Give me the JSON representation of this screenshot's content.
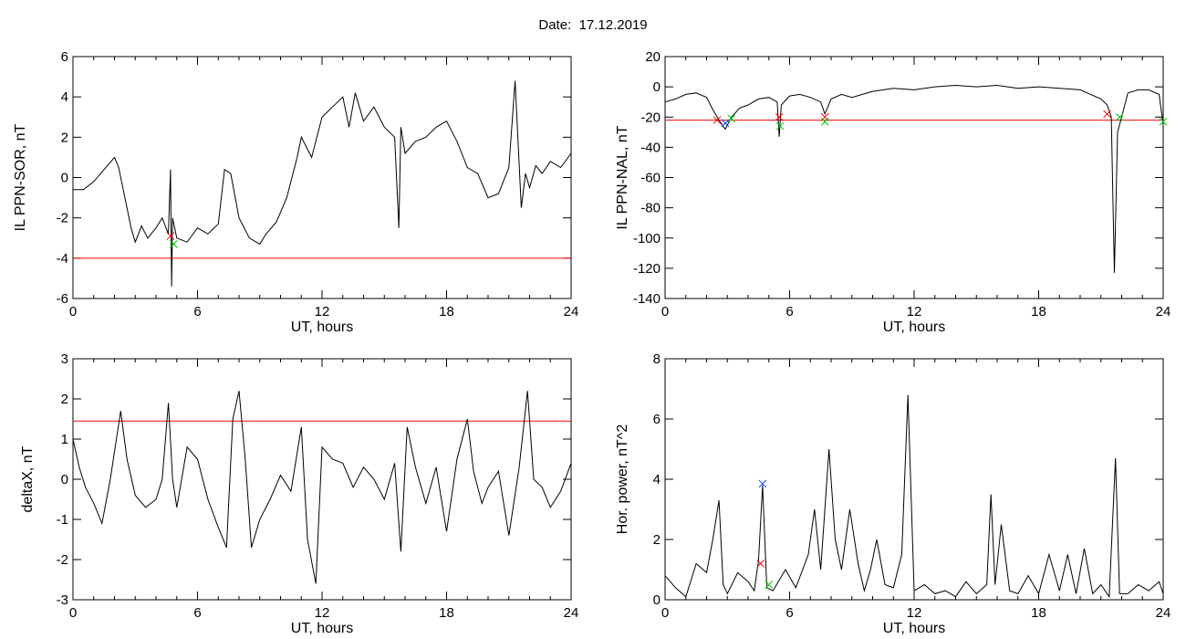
{
  "header": {
    "date_label": "Date:",
    "date_value": "17.12.2019"
  },
  "colors": {
    "trace": "#000000",
    "threshold": "#ff0000",
    "marker_red": "#ff0000",
    "marker_green": "#00cc00",
    "marker_blue": "#0044ff",
    "dip": "#1f5fbf"
  },
  "chart_data": [
    {
      "type": "line",
      "title": "",
      "xlabel": "UT, hours",
      "ylabel": "IL PPN-SOR, nT",
      "xlim": [
        0,
        24
      ],
      "ylim": [
        -6,
        6
      ],
      "xticks": [
        0,
        6,
        12,
        18,
        24
      ],
      "yticks": [
        -6,
        -4,
        -2,
        0,
        2,
        4,
        6
      ],
      "threshold": -4.0,
      "series": [
        {
          "x": [
            0,
            0.5,
            1,
            1.5,
            2,
            2.2,
            2.5,
            2.8,
            3,
            3.3,
            3.6,
            4,
            4.3,
            4.6,
            4.7,
            4.75,
            4.8,
            5,
            5.5,
            6,
            6.5,
            7,
            7.3,
            7.6,
            8,
            8.5,
            9,
            9.3,
            9.8,
            10.3,
            10.8,
            11,
            11.5,
            12,
            12.5,
            13,
            13.3,
            13.6,
            14,
            14.5,
            15,
            15.5,
            15.7,
            15.8,
            16,
            16.5,
            17,
            17.5,
            18,
            18.5,
            19,
            19.5,
            20,
            20.5,
            21,
            21.3,
            21.6,
            21.8,
            22,
            22.3,
            22.6,
            23,
            23.5,
            24
          ],
          "y": [
            -0.6,
            -0.6,
            -0.2,
            0.4,
            1.0,
            0.5,
            -1.0,
            -2.5,
            -3.2,
            -2.4,
            -3.0,
            -2.5,
            -2.0,
            -2.8,
            0.4,
            -5.4,
            -2.0,
            -3.0,
            -3.2,
            -2.5,
            -2.8,
            -2.3,
            0.4,
            0.2,
            -2.0,
            -3.0,
            -3.3,
            -2.8,
            -2.2,
            -1.0,
            1.0,
            2.0,
            1.0,
            3.0,
            3.5,
            4.0,
            2.5,
            4.2,
            2.8,
            3.5,
            2.5,
            2.0,
            -2.5,
            2.5,
            1.2,
            1.8,
            2.0,
            2.5,
            2.8,
            1.8,
            0.5,
            0.2,
            -1.0,
            -0.8,
            0.5,
            4.8,
            -1.5,
            0.2,
            -0.5,
            0.6,
            0.2,
            0.8,
            0.5,
            1.2
          ]
        }
      ],
      "markers": [
        {
          "x": 4.7,
          "y": -2.9,
          "color": "red"
        },
        {
          "x": 4.85,
          "y": -3.3,
          "color": "green"
        }
      ]
    },
    {
      "type": "line",
      "title": "",
      "xlabel": "UT, hours",
      "ylabel": "IL PPN-NAL, nT",
      "xlim": [
        0,
        24
      ],
      "ylim": [
        -140,
        20
      ],
      "xticks": [
        0,
        6,
        12,
        18,
        24
      ],
      "yticks": [
        -140,
        -120,
        -100,
        -80,
        -60,
        -40,
        -20,
        0,
        20
      ],
      "threshold": -22,
      "series": [
        {
          "x": [
            0,
            0.5,
            1,
            1.5,
            2,
            2.3,
            2.6,
            2.9,
            3.2,
            3.6,
            4,
            4.5,
            5,
            5.4,
            5.5,
            5.6,
            6,
            6.5,
            7,
            7.5,
            7.7,
            8,
            8.5,
            9,
            10,
            11,
            12,
            13,
            14,
            15,
            16,
            17,
            18,
            19,
            20,
            20.5,
            21,
            21.3,
            21.5,
            21.65,
            21.8,
            22,
            22.3,
            22.8,
            23.3,
            23.8,
            24
          ],
          "y": [
            -10,
            -8,
            -5,
            -4,
            -7,
            -15,
            -22,
            -28,
            -20,
            -14,
            -12,
            -8,
            -7,
            -10,
            -33,
            -12,
            -6,
            -5,
            -7,
            -10,
            -18,
            -8,
            -5,
            -7,
            -3,
            -1,
            -2,
            0,
            1,
            0,
            1,
            -1,
            0,
            -1,
            -2,
            -5,
            -8,
            -12,
            -20,
            -123,
            -30,
            -20,
            -4,
            -2,
            -2,
            -5,
            -25
          ]
        }
      ],
      "markers": [
        {
          "x": 2.5,
          "y": -22,
          "color": "red"
        },
        {
          "x": 2.9,
          "y": -24,
          "color": "blue"
        },
        {
          "x": 3.2,
          "y": -21,
          "color": "green"
        },
        {
          "x": 5.5,
          "y": -20,
          "color": "red"
        },
        {
          "x": 5.55,
          "y": -26,
          "color": "green"
        },
        {
          "x": 7.7,
          "y": -20,
          "color": "red"
        },
        {
          "x": 7.7,
          "y": -23,
          "color": "green"
        },
        {
          "x": 21.3,
          "y": -18,
          "color": "red"
        },
        {
          "x": 21.9,
          "y": -20,
          "color": "green"
        },
        {
          "x": 24,
          "y": -23,
          "color": "green"
        }
      ]
    },
    {
      "type": "line",
      "title": "",
      "xlabel": "UT, hours",
      "ylabel": "deltaX, nT",
      "xlim": [
        0,
        24
      ],
      "ylim": [
        -3,
        3
      ],
      "xticks": [
        0,
        6,
        12,
        18,
        24
      ],
      "yticks": [
        -3,
        -2,
        -1,
        0,
        1,
        2,
        3
      ],
      "threshold": 1.45,
      "series": [
        {
          "x": [
            0,
            0.3,
            0.6,
            1,
            1.4,
            1.8,
            2.3,
            2.6,
            3,
            3.5,
            4,
            4.3,
            4.6,
            4.8,
            5,
            5.5,
            6,
            6.5,
            7,
            7.4,
            7.7,
            8.0,
            8.3,
            8.6,
            9,
            9.5,
            10,
            10.5,
            11,
            11.3,
            11.7,
            12,
            12.5,
            13,
            13.5,
            14,
            14.5,
            15,
            15.5,
            15.8,
            16.1,
            16.5,
            17,
            17.5,
            18,
            18.5,
            19,
            19.3,
            19.7,
            20,
            20.5,
            21,
            21.5,
            21.9,
            22.2,
            22.6,
            23,
            23.5,
            24
          ],
          "y": [
            1.0,
            0.3,
            -0.2,
            -0.6,
            -1.1,
            0.0,
            1.7,
            0.5,
            -0.4,
            -0.7,
            -0.5,
            0.0,
            1.9,
            0.0,
            -0.7,
            0.8,
            0.5,
            -0.5,
            -1.2,
            -1.7,
            1.5,
            2.2,
            0.5,
            -1.7,
            -1.0,
            -0.5,
            0.1,
            -0.3,
            1.3,
            -1.5,
            -2.6,
            0.8,
            0.5,
            0.4,
            -0.2,
            0.3,
            0.0,
            -0.5,
            0.4,
            -1.8,
            1.3,
            0.3,
            -0.6,
            0.3,
            -1.3,
            0.5,
            1.5,
            0.2,
            -0.6,
            -0.2,
            0.2,
            -1.4,
            0.3,
            2.2,
            0.0,
            -0.2,
            -0.7,
            -0.3,
            0.4
          ]
        }
      ],
      "markers": []
    },
    {
      "type": "line",
      "title": "",
      "xlabel": "UT, hours",
      "ylabel": "Hor. power, nT^2",
      "xlim": [
        0,
        24
      ],
      "ylim": [
        0,
        8
      ],
      "xticks": [
        0,
        6,
        12,
        18,
        24
      ],
      "yticks": [
        0,
        2,
        4,
        6,
        8
      ],
      "series": [
        {
          "x": [
            0,
            0.5,
            1,
            1.5,
            2,
            2.3,
            2.6,
            2.8,
            3,
            3.5,
            4,
            4.3,
            4.5,
            4.7,
            4.9,
            5.2,
            5.8,
            6.3,
            6.9,
            7.2,
            7.5,
            7.9,
            8.2,
            8.5,
            8.9,
            9.3,
            9.6,
            9.9,
            10.2,
            10.6,
            11,
            11.4,
            11.7,
            12,
            12.5,
            13,
            13.5,
            14,
            14.5,
            15,
            15.5,
            15.7,
            15.9,
            16.2,
            16.6,
            17,
            17.5,
            18,
            18.5,
            19,
            19.4,
            19.8,
            20.2,
            20.6,
            21,
            21.4,
            21.7,
            21.9,
            22.3,
            22.8,
            23.3,
            23.8,
            24
          ],
          "y": [
            0.8,
            0.4,
            0.1,
            1.2,
            0.9,
            2.0,
            3.3,
            0.5,
            0.2,
            0.9,
            0.6,
            0.3,
            1.3,
            3.8,
            0.4,
            0.3,
            1.0,
            0.4,
            1.5,
            3.0,
            1.0,
            5.0,
            2.0,
            1.0,
            3.0,
            1.2,
            0.3,
            1.0,
            2.0,
            0.5,
            0.4,
            1.5,
            6.8,
            0.3,
            0.5,
            0.2,
            0.3,
            0.1,
            0.6,
            0.2,
            0.5,
            3.5,
            0.5,
            2.5,
            0.3,
            0.2,
            0.8,
            0.2,
            1.5,
            0.3,
            1.5,
            0.2,
            1.7,
            0.2,
            0.5,
            0.1,
            4.7,
            0.2,
            0.2,
            0.5,
            0.3,
            0.6,
            0.2
          ]
        }
      ],
      "markers": [
        {
          "x": 4.7,
          "y": 3.85,
          "color": "blue"
        },
        {
          "x": 4.6,
          "y": 1.2,
          "color": "red"
        },
        {
          "x": 5.0,
          "y": 0.5,
          "color": "green"
        }
      ]
    }
  ]
}
